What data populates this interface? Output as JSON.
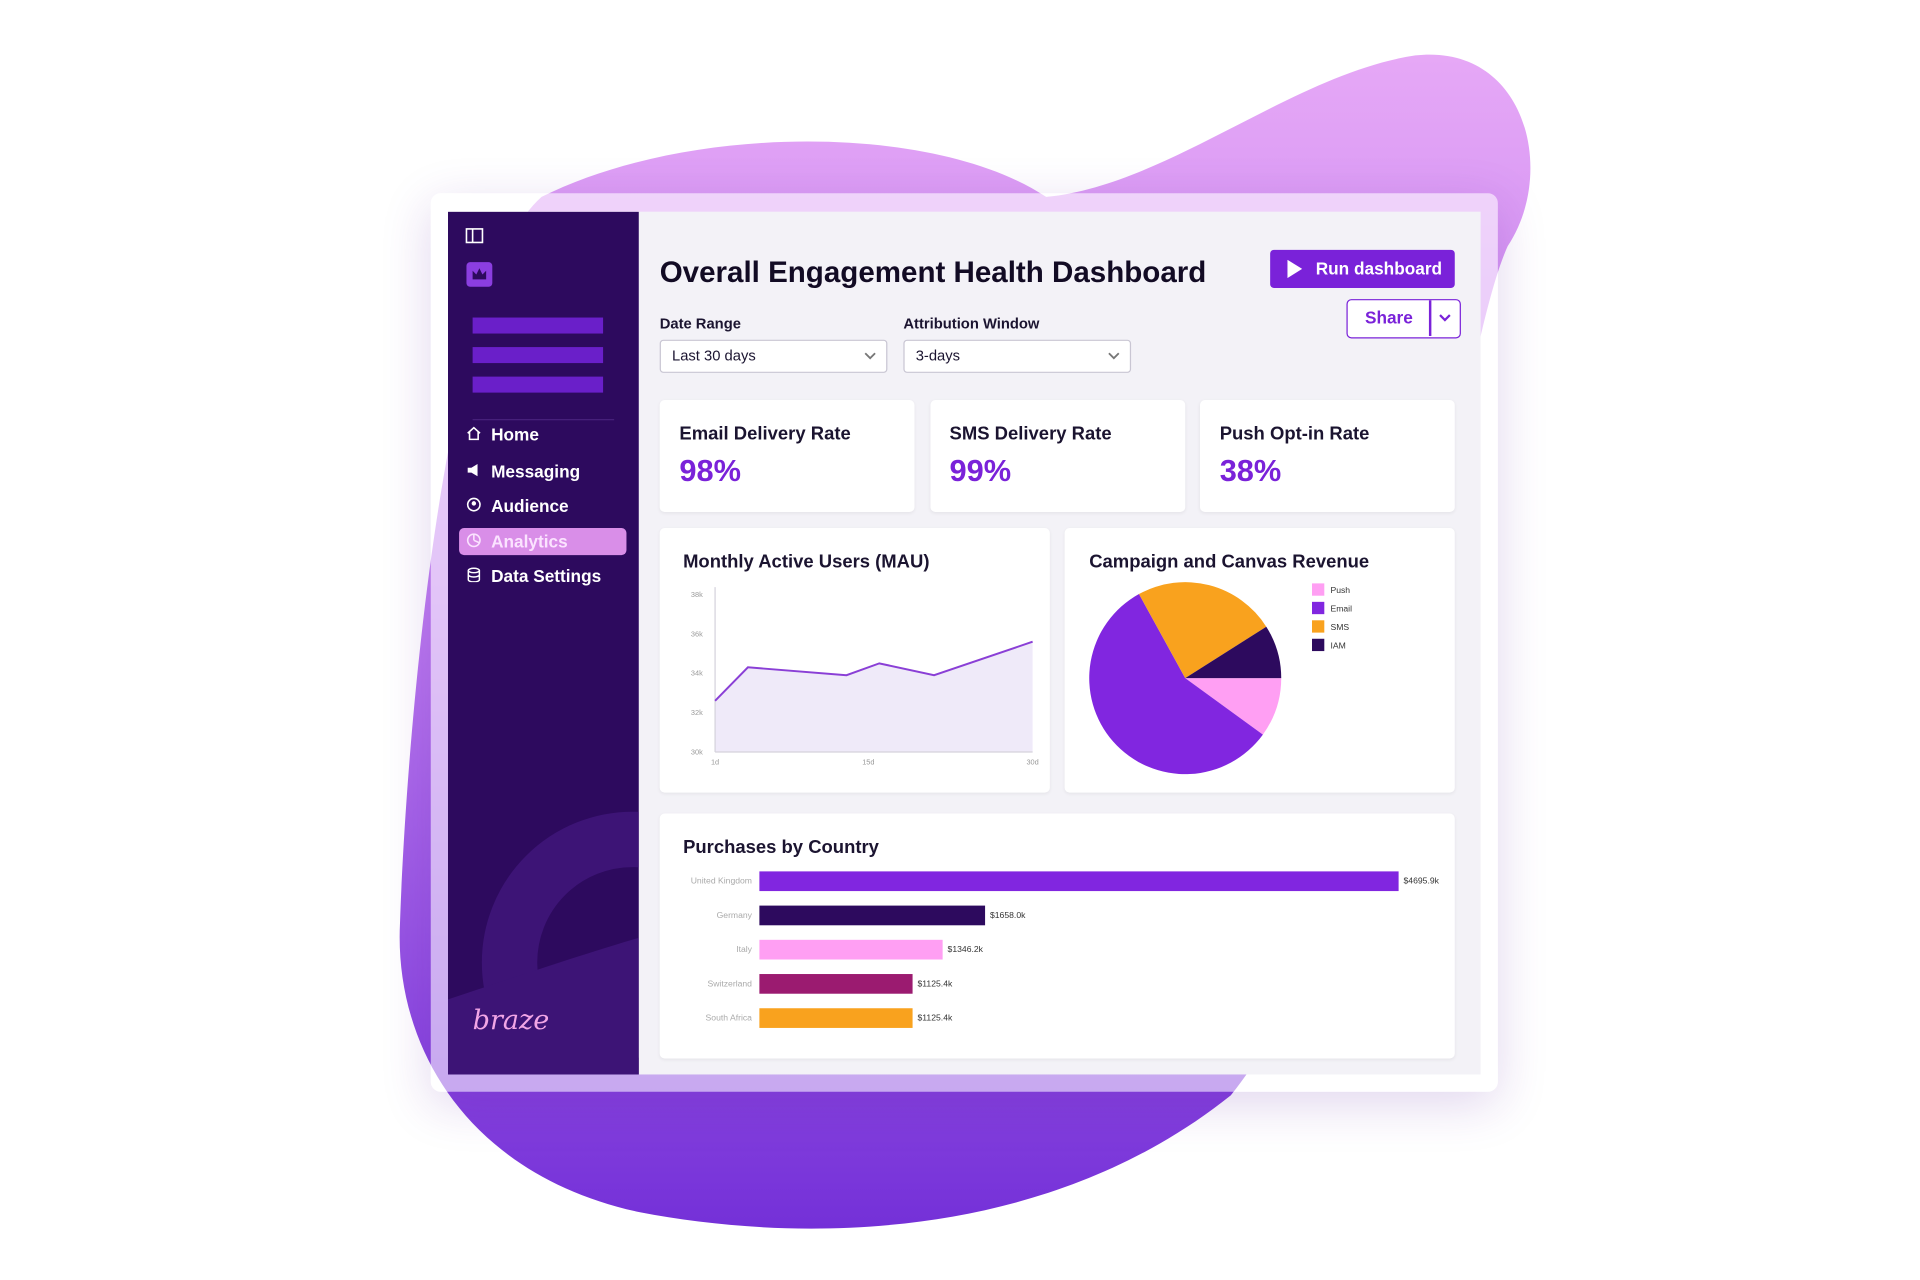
{
  "sidebar": {
    "nav": [
      "Home",
      "Messaging",
      "Audience",
      "Analytics",
      "Data Settings"
    ],
    "active": 3,
    "logo": "braze"
  },
  "header": {
    "title": "Overall Engagement Health Dashboard",
    "run_button": "Run dashboard",
    "share_button": "Share"
  },
  "filters": [
    {
      "label": "Date Range",
      "value": "Last 30 days"
    },
    {
      "label": "Attribution Window",
      "value": "3-days"
    }
  ],
  "kpis": [
    {
      "label": "Email Delivery Rate",
      "value": "98%"
    },
    {
      "label": "SMS Delivery Rate",
      "value": "99%"
    },
    {
      "label": "Push Opt-in Rate",
      "value": "38%"
    }
  ],
  "chart_data": [
    {
      "type": "line",
      "title": "Monthly Active Users (MAU)",
      "x": [
        1,
        4,
        13,
        16,
        21,
        30
      ],
      "values": [
        32600,
        34300,
        33900,
        34500,
        33900,
        35600
      ],
      "color": "#8a3fd6",
      "xlim": [
        1,
        30
      ],
      "xticks": [
        {
          "value": 1,
          "label": "1d"
        },
        {
          "value": 15,
          "label": "15d"
        },
        {
          "value": 30,
          "label": "30d"
        }
      ],
      "ylim": [
        30000,
        38000
      ],
      "yticks": [
        {
          "value": 30000,
          "label": "30k"
        },
        {
          "value": 32000,
          "label": "32k"
        },
        {
          "value": 34000,
          "label": "34k"
        },
        {
          "value": 36000,
          "label": "36k"
        },
        {
          "value": 38000,
          "label": "38k"
        }
      ]
    },
    {
      "type": "pie",
      "title": "Campaign and Canvas Revenue",
      "categories": [
        "Push",
        "Email",
        "SMS",
        "IAM"
      ],
      "values": [
        10,
        57,
        24,
        9
      ],
      "colors": [
        "#ff9ff3",
        "#8126e0",
        "#f9a21e",
        "#2d0a5e"
      ]
    },
    {
      "type": "hbar",
      "title": "Purchases by Country",
      "categories": [
        "United Kingdom",
        "Germany",
        "Italy",
        "Switzerland",
        "South Africa"
      ],
      "values": [
        4695.9,
        1658.0,
        1346.2,
        1125.4,
        1125.4
      ],
      "value_labels": [
        "$4695.9k",
        "$1658.0k",
        "$1346.2k",
        "$1125.4k",
        "$1125.4k"
      ],
      "colors": [
        "#8126e0",
        "#2d0a5e",
        "#ff9ff3",
        "#9b1b70",
        "#f9a21e"
      ],
      "xlim": [
        0,
        5000
      ]
    }
  ]
}
